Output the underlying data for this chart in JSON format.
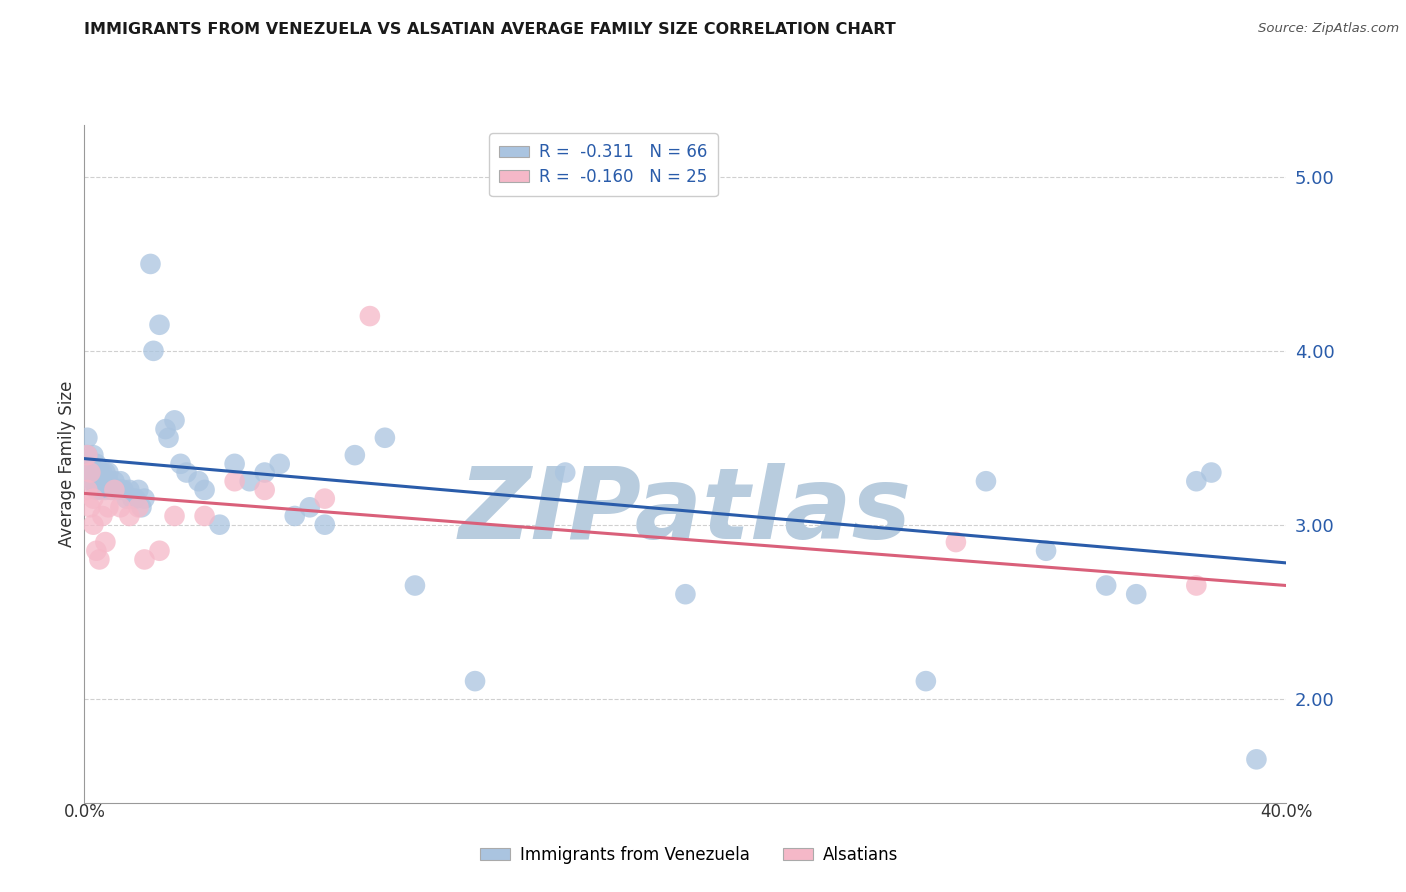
{
  "title": "IMMIGRANTS FROM VENEZUELA VS ALSATIAN AVERAGE FAMILY SIZE CORRELATION CHART",
  "source": "Source: ZipAtlas.com",
  "ylabel": "Average Family Size",
  "right_yticks": [
    2.0,
    3.0,
    4.0,
    5.0
  ],
  "legend_blue_r": "-0.311",
  "legend_blue_n": "66",
  "legend_pink_r": "-0.160",
  "legend_pink_n": "25",
  "legend_label_blue": "Immigrants from Venezuela",
  "legend_label_pink": "Alsatians",
  "blue_color": "#aac4e0",
  "blue_line_color": "#2a5caa",
  "pink_color": "#f5b8c8",
  "pink_line_color": "#d9607a",
  "blue_x": [
    0.001,
    0.001,
    0.002,
    0.002,
    0.002,
    0.003,
    0.003,
    0.003,
    0.004,
    0.004,
    0.004,
    0.005,
    0.005,
    0.005,
    0.006,
    0.006,
    0.007,
    0.007,
    0.008,
    0.008,
    0.009,
    0.01,
    0.01,
    0.011,
    0.012,
    0.012,
    0.013,
    0.014,
    0.015,
    0.016,
    0.017,
    0.018,
    0.019,
    0.02,
    0.022,
    0.023,
    0.025,
    0.027,
    0.028,
    0.03,
    0.032,
    0.034,
    0.038,
    0.04,
    0.045,
    0.05,
    0.055,
    0.06,
    0.065,
    0.07,
    0.075,
    0.08,
    0.09,
    0.1,
    0.11,
    0.13,
    0.16,
    0.2,
    0.28,
    0.3,
    0.32,
    0.34,
    0.35,
    0.37,
    0.375,
    0.39
  ],
  "blue_y": [
    3.5,
    3.4,
    3.35,
    3.3,
    3.25,
    3.4,
    3.3,
    3.25,
    3.35,
    3.3,
    3.2,
    3.3,
    3.25,
    3.2,
    3.3,
    3.25,
    3.3,
    3.2,
    3.3,
    3.25,
    3.2,
    3.25,
    3.2,
    3.2,
    3.25,
    3.2,
    3.2,
    3.15,
    3.2,
    3.15,
    3.15,
    3.2,
    3.1,
    3.15,
    4.5,
    4.0,
    4.15,
    3.55,
    3.5,
    3.6,
    3.35,
    3.3,
    3.25,
    3.2,
    3.0,
    3.35,
    3.25,
    3.3,
    3.35,
    3.05,
    3.1,
    3.0,
    3.4,
    3.5,
    2.65,
    2.1,
    3.3,
    2.6,
    2.1,
    3.25,
    2.85,
    2.65,
    2.6,
    3.25,
    3.3,
    1.65
  ],
  "pink_x": [
    0.001,
    0.001,
    0.002,
    0.002,
    0.003,
    0.003,
    0.004,
    0.005,
    0.006,
    0.007,
    0.008,
    0.01,
    0.012,
    0.015,
    0.018,
    0.02,
    0.025,
    0.03,
    0.04,
    0.05,
    0.06,
    0.08,
    0.095,
    0.29,
    0.37
  ],
  "pink_y": [
    3.4,
    3.2,
    3.3,
    3.1,
    3.15,
    3.0,
    2.85,
    2.8,
    3.05,
    2.9,
    3.1,
    3.2,
    3.1,
    3.05,
    3.1,
    2.8,
    2.85,
    3.05,
    3.05,
    3.25,
    3.2,
    3.15,
    4.2,
    2.9,
    2.65
  ],
  "blue_trend_x": [
    0.0,
    0.4
  ],
  "blue_trend_y": [
    3.38,
    2.78
  ],
  "pink_trend_x": [
    0.0,
    0.4
  ],
  "pink_trend_y": [
    3.18,
    2.65
  ],
  "xlim": [
    0.0,
    0.4
  ],
  "ylim": [
    1.4,
    5.3
  ],
  "background_color": "#ffffff",
  "watermark": "ZIPatlas",
  "watermark_color": "#b8ccde",
  "grid_color": "#d0d0d0"
}
